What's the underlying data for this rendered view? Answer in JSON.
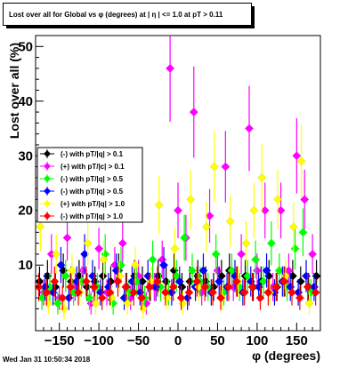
{
  "chart_data": {
    "type": "scatter",
    "title": "Lost over all for Global vs φ (degrees) at | η | <= 1.0 at pT > 0.11",
    "xlabel": "φ (degrees)",
    "ylabel": "Lost over all (%)",
    "xlim": [
      -180,
      180
    ],
    "ylim": [
      -2,
      52
    ],
    "xticks": [
      -150,
      -100,
      -50,
      0,
      50,
      100,
      150
    ],
    "yticks": [
      10,
      20,
      30,
      40,
      50
    ],
    "legend_position": "left-middle",
    "series": [
      {
        "name": "(-) with pT/|q| > 0.1",
        "color": "#000000",
        "x": [
          -175,
          -165,
          -155,
          -145,
          -135,
          -125,
          -115,
          -105,
          -95,
          -85,
          -75,
          -65,
          -55,
          -45,
          -35,
          -25,
          -15,
          -5,
          5,
          15,
          25,
          35,
          45,
          55,
          65,
          75,
          85,
          95,
          105,
          115,
          125,
          135,
          145,
          155,
          165,
          175
        ],
        "y": [
          7,
          8,
          6,
          9,
          7,
          8,
          6,
          7,
          8,
          7,
          9,
          6,
          8,
          7,
          6,
          8,
          7,
          9,
          6,
          7,
          8,
          7,
          6,
          8,
          9,
          7,
          8,
          6,
          7,
          8,
          6,
          7,
          8,
          7,
          6,
          8
        ]
      },
      {
        "name": "(+) with pT/|c| > 0.1",
        "color": "#ff00ff",
        "x": [
          -170,
          -160,
          -150,
          -140,
          -130,
          -120,
          -110,
          -100,
          -90,
          -80,
          -70,
          -60,
          -50,
          -40,
          -30,
          -20,
          -10,
          0,
          10,
          20,
          30,
          40,
          50,
          60,
          70,
          80,
          90,
          100,
          110,
          120,
          130,
          140,
          150,
          160,
          170
        ],
        "y": [
          5,
          12,
          4,
          15,
          6,
          9,
          3,
          13,
          5,
          10,
          14,
          4,
          8,
          3,
          6,
          11,
          46,
          20,
          15,
          38,
          5,
          19,
          9,
          28,
          6,
          12,
          35,
          9,
          20,
          6,
          20,
          9,
          30,
          22,
          12
        ]
      },
      {
        "name": "(-) with pT/|q| > 0.5",
        "color": "#00ff00",
        "x": [
          -172,
          -162,
          -152,
          -142,
          -132,
          -122,
          -112,
          -102,
          -92,
          -82,
          -72,
          -62,
          -52,
          -42,
          -32,
          -22,
          -12,
          -2,
          8,
          18,
          28,
          38,
          48,
          58,
          68,
          78,
          88,
          98,
          108,
          118,
          128,
          138,
          148,
          158,
          168
        ],
        "y": [
          4,
          6,
          3,
          8,
          5,
          7,
          4,
          6,
          12,
          3,
          10,
          5,
          7,
          4,
          11,
          6,
          5,
          8,
          15,
          9,
          7,
          6,
          12,
          5,
          9,
          6,
          8,
          11,
          7,
          14,
          9,
          6,
          13,
          16,
          5
        ]
      },
      {
        "name": "(-) with pT/|q| > 0.5",
        "color": "#0000ff",
        "x": [
          -168,
          -158,
          -148,
          -138,
          -128,
          -118,
          -108,
          -98,
          -88,
          -78,
          -68,
          -58,
          -48,
          -38,
          -28,
          -18,
          -8,
          2,
          12,
          22,
          32,
          42,
          52,
          62,
          72,
          82,
          92,
          102,
          112,
          122,
          132,
          142,
          152,
          162,
          172
        ],
        "y": [
          6,
          5,
          10,
          4,
          7,
          12,
          8,
          5,
          6,
          9,
          4,
          7,
          5,
          8,
          6,
          10,
          5,
          7,
          4,
          6,
          9,
          5,
          7,
          6,
          8,
          5,
          7,
          6,
          9,
          5,
          7,
          6,
          5,
          8,
          6
        ]
      },
      {
        "name": "(+) with pT/|q| > 1.0",
        "color": "#ffff00",
        "x": [
          -174,
          -164,
          -154,
          -144,
          -134,
          -124,
          -114,
          -104,
          -94,
          -84,
          -74,
          -64,
          -54,
          -44,
          -34,
          -24,
          -14,
          -4,
          6,
          16,
          26,
          36,
          46,
          56,
          66,
          76,
          86,
          96,
          106,
          116,
          126,
          136,
          146,
          156,
          166
        ],
        "y": [
          17,
          3,
          12,
          2,
          9,
          5,
          14,
          3,
          11,
          4,
          8,
          3,
          10,
          2,
          7,
          21,
          4,
          13,
          3,
          22,
          6,
          17,
          28,
          4,
          18,
          7,
          14,
          20,
          26,
          5,
          22,
          8,
          17,
          29,
          3
        ]
      },
      {
        "name": "(-) with pT/|q| > 1.0",
        "color": "#ff0000",
        "x": [
          -176,
          -166,
          -156,
          -146,
          -136,
          -126,
          -116,
          -106,
          -96,
          -86,
          -76,
          -66,
          -56,
          -46,
          -36,
          -26,
          -16,
          -6,
          4,
          14,
          24,
          34,
          44,
          54,
          64,
          74,
          84,
          94,
          104,
          114,
          124,
          134,
          144,
          154,
          164,
          174
        ],
        "y": [
          6,
          5,
          7,
          4,
          6,
          5,
          7,
          6,
          4,
          5,
          7,
          6,
          5,
          4,
          6,
          7,
          5,
          6,
          4,
          5,
          7,
          6,
          5,
          4,
          6,
          7,
          5,
          6,
          4,
          5,
          6,
          7,
          5,
          4,
          6,
          5
        ]
      }
    ],
    "legend": [
      {
        "label": "(-) with pT/|q| > 0.1",
        "color": "#000000"
      },
      {
        "label": "(+) with pT/|c| > 0.1",
        "color": "#ff00ff"
      },
      {
        "label": "(-) with pT/|q| > 0.5",
        "color": "#00ff00"
      },
      {
        "label": "(-) with pT/|q| > 0.5",
        "color": "#0000ff"
      },
      {
        "label": "(+) with pT/|q| > 1.0",
        "color": "#ffff00"
      },
      {
        "label": "(-) with pT/|q| > 1.0",
        "color": "#ff0000"
      }
    ]
  },
  "footer": {
    "timestamp": "Wed Jan 31 10:50:34 2018"
  }
}
